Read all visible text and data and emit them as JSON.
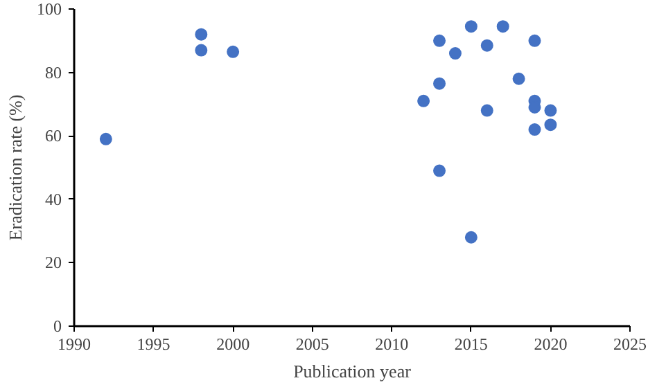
{
  "chart_data": {
    "type": "scatter",
    "xlabel": "Publication year",
    "ylabel": "Eradication rate (%)",
    "x": [
      1992,
      1998,
      1998,
      2000,
      2012,
      2013,
      2013,
      2013,
      2014,
      2015,
      2015,
      2016,
      2016,
      2017,
      2018,
      2019,
      2019,
      2019,
      2019,
      2020,
      2020
    ],
    "values": [
      59,
      92,
      87,
      86.5,
      71,
      90,
      76.5,
      49,
      86,
      94.5,
      28,
      88.5,
      68,
      94.5,
      78,
      90,
      71,
      69,
      62,
      68,
      63.5
    ],
    "color": "#4472c4",
    "marker": "circle",
    "xlim": [
      1990,
      2025
    ],
    "xticks": [
      1990,
      1995,
      2000,
      2005,
      2010,
      2015,
      2020,
      2025
    ],
    "ylim": [
      0,
      100
    ],
    "yticks": [
      0,
      20,
      40,
      60,
      80,
      100
    ],
    "grid": false
  }
}
